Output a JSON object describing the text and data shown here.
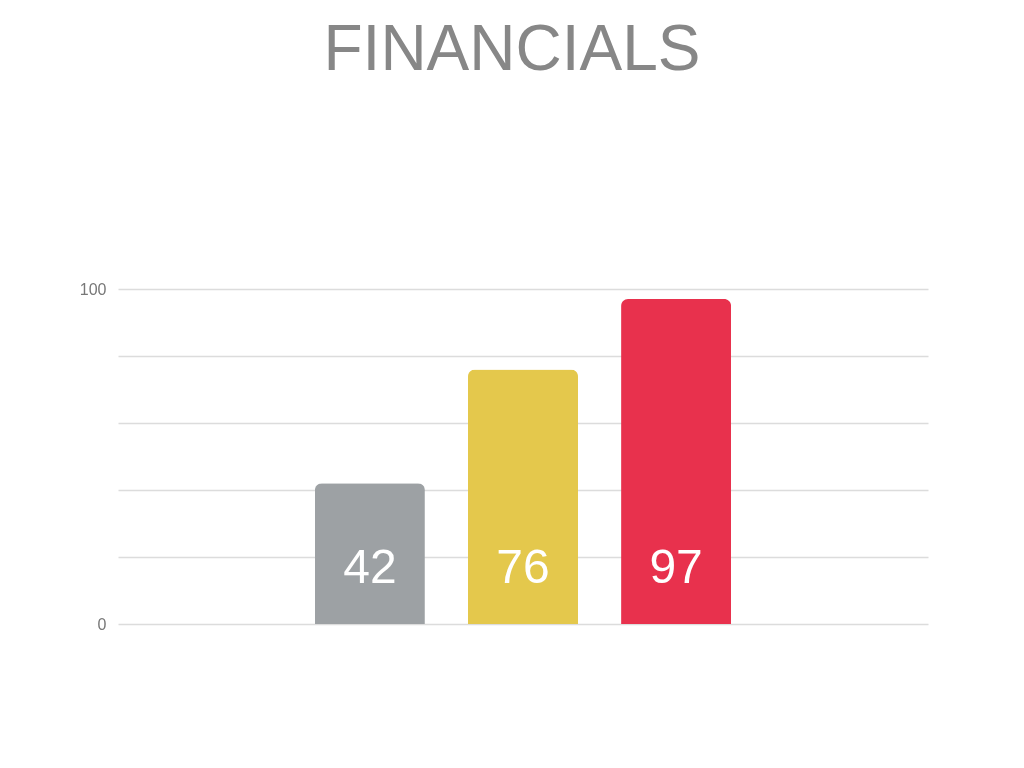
{
  "chart_data": {
    "type": "bar",
    "title": "FINANCIALS",
    "categories": [
      null,
      null,
      null
    ],
    "values": [
      42,
      76,
      97
    ],
    "colors": [
      "#9da1a4",
      "#e4c84c",
      "#e8314d"
    ],
    "ylim": [
      0,
      100
    ],
    "yticks": [
      0,
      {
        "value": 20,
        "label": null
      },
      {
        "value": 40,
        "label": null
      },
      {
        "value": 60,
        "label": null
      },
      {
        "value": 80,
        "label": null
      },
      100
    ],
    "grid": "y",
    "tick_labels": "y",
    "data_labels": true
  }
}
